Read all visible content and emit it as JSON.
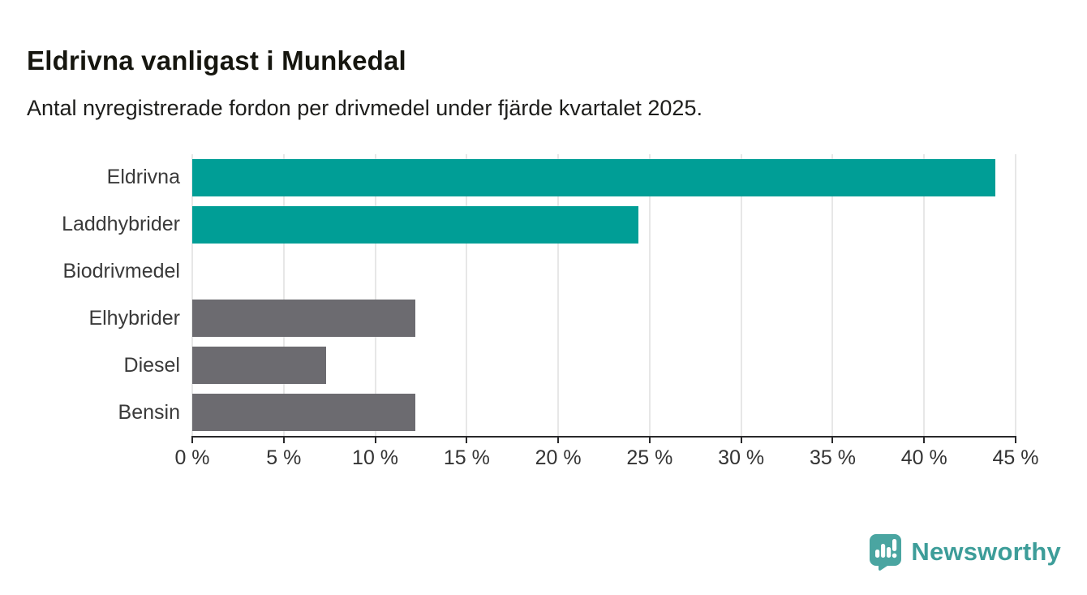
{
  "header": {
    "title": "Eldrivna vanligast i Munkedal",
    "subtitle": "Antal nyregistrerade fordon per drivmedel under fjärde kvartalet 2025."
  },
  "chart_data": {
    "type": "bar",
    "orientation": "horizontal",
    "title": "Eldrivna vanligast i Munkedal",
    "subtitle": "Antal nyregistrerade fordon per drivmedel under fjärde kvartalet 2025.",
    "categories": [
      "Eldrivna",
      "Laddhybrider",
      "Biodrivmedel",
      "Elhybrider",
      "Diesel",
      "Bensin"
    ],
    "values": [
      43.9,
      24.4,
      0,
      12.2,
      7.3,
      12.2
    ],
    "unit": "%",
    "bar_colors": [
      "#009e96",
      "#009e96",
      "#009e96",
      "#6c6b70",
      "#6c6b70",
      "#6c6b70"
    ],
    "xlabel": "",
    "ylabel": "",
    "xlim": [
      0,
      45
    ],
    "x_ticks": [
      0,
      5,
      10,
      15,
      20,
      25,
      30,
      35,
      40,
      45
    ],
    "x_tick_labels": [
      "0 %",
      "5 %",
      "10 %",
      "15 %",
      "20 %",
      "25 %",
      "30 %",
      "35 %",
      "40 %",
      "45 %"
    ],
    "grid": "vertical-only",
    "legend": "none"
  },
  "colors": {
    "accent_teal": "#009e96",
    "neutral_gray": "#6c6b70",
    "axis": "#29292b",
    "gridline": "#e7e7e7",
    "text_dark": "#16160f",
    "brand_teal": "#3d9d99",
    "logo_fill": "#4aa5a1"
  },
  "footer": {
    "brand": "Newsworthy"
  }
}
